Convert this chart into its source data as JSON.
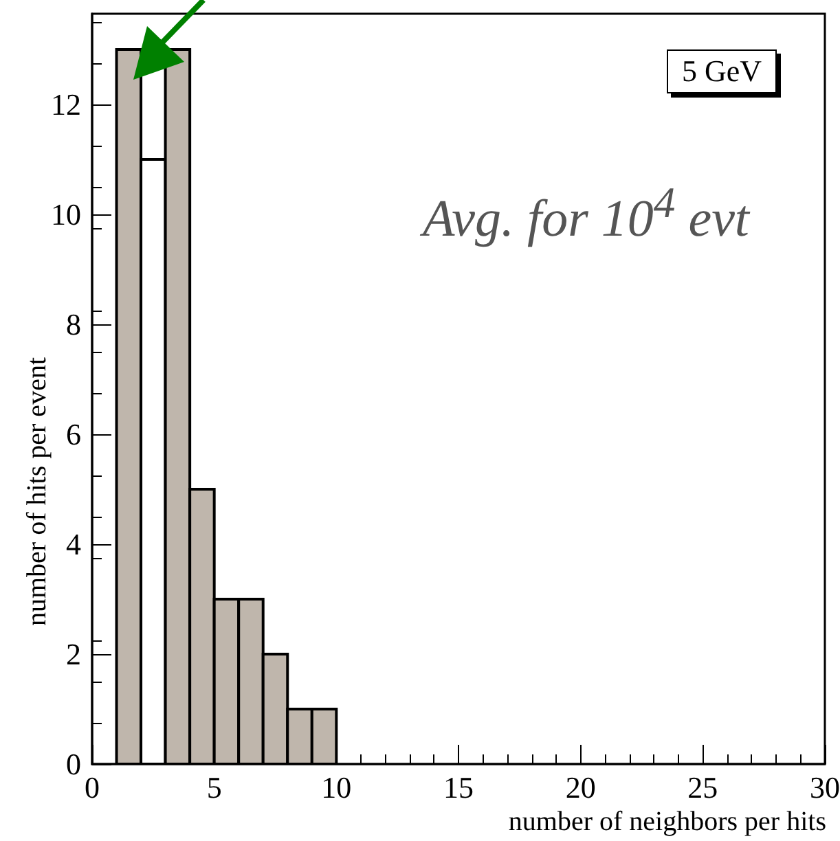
{
  "chart_data": {
    "type": "histogram",
    "xlabel": "number of neighbors per hits",
    "ylabel": "number of hits per event",
    "bins": [
      1,
      2,
      3,
      4,
      5,
      6,
      7,
      8,
      9,
      10
    ],
    "values": [
      13,
      11,
      13,
      5,
      3,
      3,
      2,
      1,
      1
    ],
    "colors": [
      "#bfb6ac",
      "#ffffff",
      "#bfb6ac",
      "#bfb6ac",
      "#bfb6ac",
      "#bfb6ac",
      "#bfb6ac",
      "#bfb6ac",
      "#bfb6ac"
    ],
    "xlim": [
      0,
      30
    ],
    "xticks": [
      0,
      5,
      10,
      15,
      20,
      25,
      30
    ],
    "ylim": [
      0,
      13.65
    ],
    "yticks": [
      0,
      2,
      4,
      6,
      8,
      10,
      12
    ],
    "grid": false,
    "annotations": [
      "5 GeV",
      "Avg. for 10$^{4}$ evt"
    ]
  }
}
